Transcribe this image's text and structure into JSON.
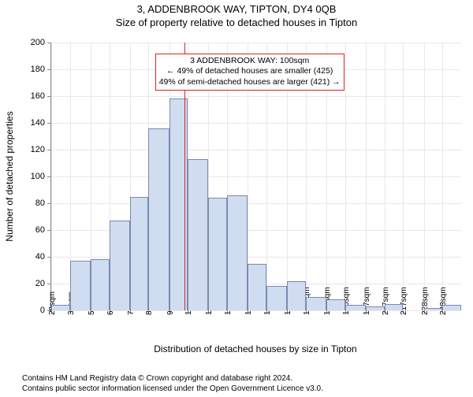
{
  "title_main": "3, ADDENBROOK WAY, TIPTON, DY4 0QB",
  "title_sub": "Size of property relative to detached houses in Tipton",
  "chart": {
    "type": "histogram",
    "xlabel": "Distribution of detached houses by size in Tipton",
    "ylabel": "Number of detached properties",
    "ylim": [
      0,
      200
    ],
    "ytick_step": 20,
    "x_tick_labels": [
      "29sqm",
      "39sqm",
      "50sqm",
      "60sqm",
      "71sqm",
      "81sqm",
      "92sqm",
      "102sqm",
      "113sqm",
      "123sqm",
      "134sqm",
      "144sqm",
      "155sqm",
      "165sqm",
      "176sqm",
      "186sqm",
      "197sqm",
      "207sqm",
      "217sqm",
      "228sqm",
      "238sqm"
    ],
    "x_tick_values": [
      29,
      39,
      50,
      60,
      71,
      81,
      92,
      102,
      113,
      123,
      134,
      144,
      155,
      165,
      176,
      186,
      197,
      207,
      217,
      228,
      238
    ],
    "x_range": [
      29,
      248
    ],
    "bar_fill": "#d0dcf0",
    "bar_stroke": "#7a8ab0",
    "grid_color": "#e8e8e8",
    "axis_color": "#888888",
    "bars": [
      {
        "x0": 29,
        "x1": 39,
        "h": 4
      },
      {
        "x0": 39,
        "x1": 50,
        "h": 37
      },
      {
        "x0": 50,
        "x1": 60,
        "h": 38
      },
      {
        "x0": 60,
        "x1": 71,
        "h": 67
      },
      {
        "x0": 71,
        "x1": 81,
        "h": 85
      },
      {
        "x0": 81,
        "x1": 92,
        "h": 136
      },
      {
        "x0": 92,
        "x1": 102,
        "h": 158
      },
      {
        "x0": 102,
        "x1": 113,
        "h": 113
      },
      {
        "x0": 113,
        "x1": 123,
        "h": 84
      },
      {
        "x0": 123,
        "x1": 134,
        "h": 86
      },
      {
        "x0": 134,
        "x1": 144,
        "h": 35
      },
      {
        "x0": 144,
        "x1": 155,
        "h": 18
      },
      {
        "x0": 155,
        "x1": 165,
        "h": 22
      },
      {
        "x0": 165,
        "x1": 176,
        "h": 10
      },
      {
        "x0": 176,
        "x1": 186,
        "h": 8
      },
      {
        "x0": 186,
        "x1": 197,
        "h": 4
      },
      {
        "x0": 197,
        "x1": 207,
        "h": 3
      },
      {
        "x0": 207,
        "x1": 217,
        "h": 5
      },
      {
        "x0": 217,
        "x1": 228,
        "h": 0
      },
      {
        "x0": 228,
        "x1": 238,
        "h": 2
      },
      {
        "x0": 238,
        "x1": 248,
        "h": 4
      }
    ],
    "vline": {
      "x": 100,
      "color": "#e02020"
    },
    "annotation": {
      "border_color": "#e02020",
      "lines": [
        "3 ADDENBROOK WAY: 100sqm",
        "← 49% of detached houses are smaller (425)",
        "49% of semi-detached houses are larger (421) →"
      ],
      "x_center": 135,
      "y_top": 192
    }
  },
  "footer_lines": [
    "Contains HM Land Registry data © Crown copyright and database right 2024.",
    "Contains public sector information licensed under the Open Government Licence v3.0."
  ]
}
